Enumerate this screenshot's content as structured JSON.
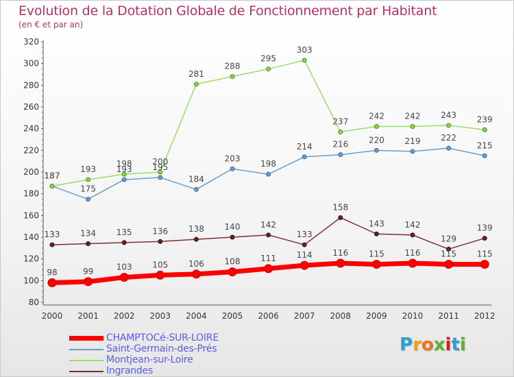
{
  "title": "Evolution de la Dotation Globale de Fonctionnement par Habitant",
  "subtitle": "(en € et par an)",
  "logo": {
    "letters": [
      "P",
      "r",
      "o",
      "x",
      "i",
      "t",
      "i"
    ],
    "colors": [
      "#2aa0d0",
      "#f0a020",
      "#f07020",
      "#60b030",
      "#d02030",
      "#2aa0d0",
      "#60b030"
    ]
  },
  "chart_data": {
    "type": "line",
    "title": "Evolution de la Dotation Globale de Fonctionnement par Habitant",
    "subtitle": "(en € et par an)",
    "x": [
      "2000",
      "2001",
      "2002",
      "2003",
      "2004",
      "2005",
      "2006",
      "2007",
      "2008",
      "2009",
      "2010",
      "2011",
      "2012"
    ],
    "ylim": [
      80,
      320
    ],
    "yticks": [
      80,
      100,
      120,
      140,
      160,
      180,
      200,
      220,
      240,
      260,
      280,
      300,
      320
    ],
    "grid": false,
    "legend": "bottom-left",
    "series": [
      {
        "name": "CHAMPTOCé-SUR-LOIRE",
        "color": "#ff0000",
        "values": [
          98,
          99,
          103,
          105,
          106,
          108,
          111,
          114,
          116,
          115,
          116,
          115,
          115
        ]
      },
      {
        "name": "Saint-Germain-des-Prés",
        "color": "#6a9ccc",
        "values": [
          187,
          175,
          193,
          195,
          184,
          203,
          198,
          214,
          216,
          220,
          219,
          222,
          215
        ]
      },
      {
        "name": "Montjean-sur-Loire",
        "color": "#99dd66",
        "values": [
          187,
          193,
          198,
          200,
          281,
          288,
          295,
          303,
          237,
          242,
          242,
          243,
          239
        ]
      },
      {
        "name": "Ingrandes",
        "color": "#7a2e2e",
        "values": [
          133,
          134,
          135,
          136,
          138,
          140,
          142,
          133,
          158,
          143,
          142,
          129,
          139
        ]
      }
    ]
  }
}
